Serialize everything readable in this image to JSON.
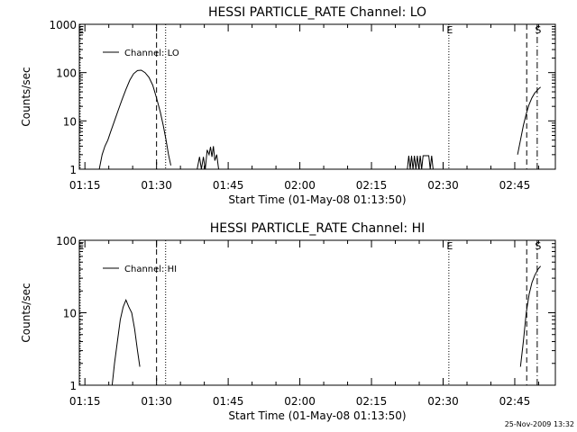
{
  "chart_data": [
    {
      "type": "line",
      "title": "HESSI PARTICLE_RATE Channel: LO",
      "xlabel": "Start Time (01-May-08 01:13:50)",
      "ylabel": "Counts/sec",
      "yscale": "log",
      "ylim": [
        1,
        1000
      ],
      "xlim_minutes": [
        73.833,
        173.5
      ],
      "x_tick_labels": [
        "01:15",
        "01:30",
        "01:45",
        "02:00",
        "02:15",
        "02:30",
        "02:45"
      ],
      "x_tick_minutes": [
        75,
        90,
        105,
        120,
        135,
        150,
        165
      ],
      "y_tick_labels": [
        "1",
        "10",
        "100",
        "1000"
      ],
      "y_tick_values": [
        1,
        10,
        100,
        1000
      ],
      "legend": {
        "label": "Channel: LO",
        "position": "top-left"
      },
      "markers": [
        {
          "label": "E",
          "minute": 74.0,
          "style": "dotted"
        },
        {
          "label": "",
          "minute": 90.0,
          "style": "dashed"
        },
        {
          "label": "",
          "minute": 91.9,
          "style": "dotted"
        },
        {
          "label": "E",
          "minute": 151.2,
          "style": "dotted"
        },
        {
          "label": "",
          "minute": 167.5,
          "style": "dashed"
        },
        {
          "label": "S",
          "minute": 169.7,
          "style": "dashdot"
        }
      ],
      "series": [
        {
          "segments": [
            [
              [
                78.0,
                1
              ],
              [
                78.6,
                2
              ],
              [
                79.2,
                3
              ],
              [
                79.8,
                4
              ],
              [
                80.4,
                6
              ],
              [
                81.2,
                10
              ],
              [
                82.0,
                17
              ],
              [
                82.8,
                28
              ],
              [
                83.6,
                45
              ],
              [
                84.4,
                70
              ],
              [
                85.2,
                95
              ],
              [
                86.0,
                110
              ],
              [
                86.8,
                112
              ],
              [
                87.6,
                100
              ],
              [
                88.4,
                80
              ],
              [
                89.2,
                55
              ],
              [
                90.0,
                30
              ],
              [
                90.8,
                15
              ],
              [
                91.4,
                8
              ],
              [
                92.0,
                4
              ],
              [
                92.5,
                2
              ],
              [
                93.0,
                1.2
              ]
            ],
            [
              [
                98.5,
                1
              ],
              [
                99.0,
                1.8
              ],
              [
                99.4,
                1
              ],
              [
                99.8,
                1.8
              ],
              [
                100.2,
                1
              ],
              [
                100.6,
                2.5
              ],
              [
                101.0,
                2
              ],
              [
                101.3,
                2.9
              ],
              [
                101.6,
                1.8
              ],
              [
                101.9,
                3
              ],
              [
                102.2,
                1.5
              ],
              [
                102.6,
                2
              ],
              [
                103.0,
                1
              ]
            ],
            [
              [
                142.5,
                1
              ],
              [
                142.8,
                1.9
              ],
              [
                143.1,
                1
              ],
              [
                143.4,
                1.9
              ],
              [
                143.7,
                1
              ],
              [
                144.0,
                1.9
              ],
              [
                144.3,
                1
              ],
              [
                144.6,
                1.9
              ],
              [
                144.9,
                1
              ],
              [
                145.2,
                1.9
              ],
              [
                145.5,
                1
              ],
              [
                145.8,
                1.9
              ],
              [
                146.1,
                1.9
              ],
              [
                146.4,
                1.9
              ],
              [
                146.7,
                1.9
              ],
              [
                147.0,
                1.9
              ],
              [
                147.3,
                1
              ],
              [
                147.6,
                1.9
              ],
              [
                147.9,
                1
              ]
            ],
            [
              [
                165.6,
                2
              ],
              [
                166.2,
                4
              ],
              [
                166.8,
                8
              ],
              [
                167.4,
                14
              ],
              [
                168.0,
                22
              ],
              [
                168.6,
                30
              ],
              [
                169.2,
                38
              ],
              [
                169.9,
                45
              ],
              [
                170.4,
                50
              ]
            ]
          ]
        }
      ]
    },
    {
      "type": "line",
      "title": "HESSI PARTICLE_RATE Channel: HI",
      "xlabel": "Start Time (01-May-08 01:13:50)",
      "ylabel": "Counts/sec",
      "yscale": "log",
      "ylim": [
        1,
        100
      ],
      "xlim_minutes": [
        73.833,
        173.5
      ],
      "x_tick_labels": [
        "01:15",
        "01:30",
        "01:45",
        "02:00",
        "02:15",
        "02:30",
        "02:45"
      ],
      "x_tick_minutes": [
        75,
        90,
        105,
        120,
        135,
        150,
        165
      ],
      "y_tick_labels": [
        "1",
        "10",
        "100"
      ],
      "y_tick_values": [
        1,
        10,
        100
      ],
      "legend": {
        "label": "Channel: HI",
        "position": "top-left"
      },
      "markers": [
        {
          "label": "E",
          "minute": 74.0,
          "style": "dotted"
        },
        {
          "label": "",
          "minute": 90.0,
          "style": "dashed"
        },
        {
          "label": "",
          "minute": 91.9,
          "style": "dotted"
        },
        {
          "label": "E",
          "minute": 151.2,
          "style": "dotted"
        },
        {
          "label": "",
          "minute": 167.5,
          "style": "dashed"
        },
        {
          "label": "S",
          "minute": 169.7,
          "style": "dashdot"
        }
      ],
      "series": [
        {
          "segments": [
            [
              [
                80.7,
                1
              ],
              [
                81.2,
                2
              ],
              [
                81.8,
                4
              ],
              [
                82.4,
                8
              ],
              [
                83.0,
                12
              ],
              [
                83.6,
                15
              ],
              [
                84.2,
                12
              ],
              [
                84.8,
                10
              ],
              [
                85.4,
                6
              ],
              [
                86.0,
                3
              ],
              [
                86.5,
                1.8
              ]
            ],
            [
              [
                166.2,
                1.8
              ],
              [
                166.8,
                4
              ],
              [
                167.4,
                10
              ],
              [
                168.0,
                18
              ],
              [
                168.6,
                26
              ],
              [
                169.2,
                33
              ],
              [
                169.9,
                40
              ],
              [
                170.4,
                44
              ]
            ]
          ]
        }
      ]
    }
  ],
  "footer": {
    "timestamp": "25-Nov-2009 13:32"
  }
}
